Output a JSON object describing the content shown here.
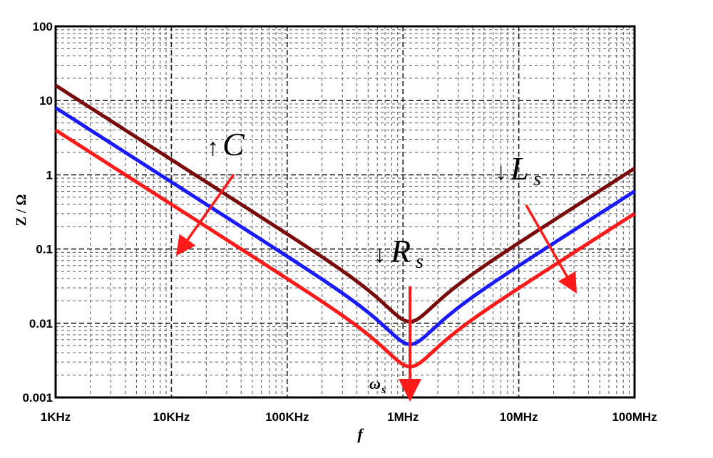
{
  "chart_data": {
    "type": "line",
    "title": "",
    "xlabel": "f",
    "ylabel": "Z / Ω",
    "x_scale": "log",
    "y_scale": "log",
    "xlim": [
      1000,
      100000000
    ],
    "ylim": [
      0.001,
      100
    ],
    "x_ticks": [
      {
        "value": 1000,
        "label": "1KHz"
      },
      {
        "value": 10000,
        "label": "10KHz"
      },
      {
        "value": 100000,
        "label": "100KHz"
      },
      {
        "value": 1000000,
        "label": "1MHz"
      },
      {
        "value": 10000000,
        "label": "10MHz"
      },
      {
        "value": 100000000,
        "label": "100MHz"
      }
    ],
    "y_ticks": [
      {
        "value": 0.001,
        "label": "0.001"
      },
      {
        "value": 0.01,
        "label": "0.01"
      },
      {
        "value": 0.1,
        "label": "0.1"
      },
      {
        "value": 1,
        "label": "1"
      },
      {
        "value": 10,
        "label": "10"
      },
      {
        "value": 100,
        "label": "100"
      }
    ],
    "grid": true,
    "series": [
      {
        "color": "#7a0a0a",
        "resonance_hz": 1100000,
        "min_impedance": 0.0105,
        "x": [
          1000,
          10000,
          100000,
          500000,
          1100000,
          3000000,
          10000000,
          100000000
        ],
        "y": [
          16,
          1.6,
          0.16,
          0.035,
          0.0105,
          0.04,
          0.12,
          1.22
        ]
      },
      {
        "color": "#1a1aff",
        "resonance_hz": 1100000,
        "min_impedance": 0.0052,
        "x": [
          1000,
          10000,
          100000,
          500000,
          1100000,
          3000000,
          10000000,
          100000000
        ],
        "y": [
          8,
          0.8,
          0.08,
          0.017,
          0.0052,
          0.02,
          0.06,
          0.6
        ]
      },
      {
        "color": "#ff1a1a",
        "resonance_hz": 1100000,
        "min_impedance": 0.0026,
        "x": [
          1000,
          10000,
          100000,
          500000,
          1100000,
          3000000,
          10000000,
          100000000
        ],
        "y": [
          4,
          0.4,
          0.04,
          0.0085,
          0.0026,
          0.01,
          0.03,
          0.3
        ]
      }
    ],
    "annotations": [
      {
        "symbol": "↑",
        "text": "C",
        "sub": ""
      },
      {
        "symbol": "↓",
        "text": "R",
        "sub": "s"
      },
      {
        "symbol": "↓",
        "text": "L",
        "sub": "s"
      },
      {
        "symbol": "",
        "text": "ω",
        "sub": "s"
      }
    ],
    "arrow_color": "#ff1a1a"
  }
}
